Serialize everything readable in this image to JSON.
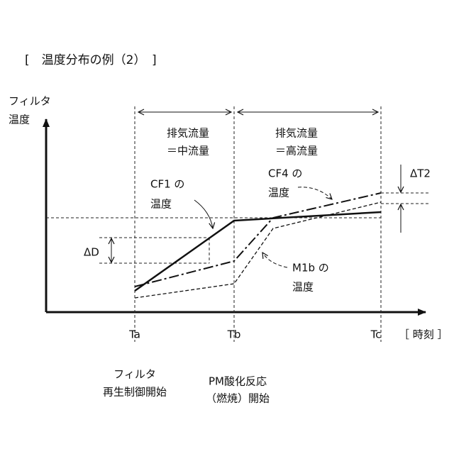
{
  "title": "[　温度分布の例（2）　]",
  "y_axis_label": [
    "フィルタ",
    "温度"
  ],
  "x_axis_label": "［ 時刻 ］",
  "time_points": [
    "Ta",
    "Tb",
    "Tc"
  ],
  "regions": [
    [
      "排気流量",
      "＝中流量"
    ],
    [
      "排気流量",
      "＝高流量"
    ]
  ],
  "curves": [
    [
      "CF1 の",
      "温度"
    ],
    [
      "CF4 の",
      "温度"
    ],
    [
      "M1b の",
      "温度"
    ]
  ],
  "delta_labels": [
    "ΔD",
    "ΔT2"
  ],
  "events": [
    [
      "フィルタ",
      "再生制御開始"
    ],
    [
      "PM酸化反応",
      "（燃焼）開始"
    ]
  ]
}
